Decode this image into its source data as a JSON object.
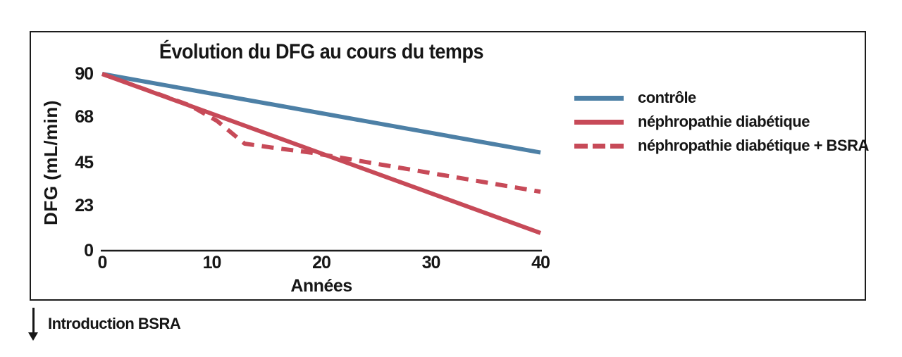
{
  "figure": {
    "title": "Évolution du DFG au cours du temps",
    "x_axis_label": "Années",
    "y_axis_label": "DFG (mL/min)",
    "annotation": {
      "arrow_icon": "down-arrow",
      "label": "Introduction BSRA"
    }
  },
  "legend": {
    "items": [
      {
        "label": "contrôle",
        "color": "#4d80a6",
        "style": "solid"
      },
      {
        "label": "néphropathie diabétique",
        "color": "#c74a58",
        "style": "solid"
      },
      {
        "label": "néphropathie diabétique + BSRA",
        "color": "#c74a58",
        "style": "dashed"
      }
    ]
  },
  "chart_data": {
    "type": "line",
    "title": "Évolution du DFG au cours du temps",
    "xlabel": "Années",
    "ylabel": "DFG (mL/min)",
    "xlim": [
      0,
      40
    ],
    "ylim": [
      0,
      90
    ],
    "xticks": [
      "0",
      "10",
      "20",
      "30",
      "40"
    ],
    "yticks": [
      "90",
      "68",
      "45",
      "23",
      "0"
    ],
    "grid": false,
    "legend_position": "right",
    "series": [
      {
        "name": "contrôle",
        "color": "#4d80a6",
        "style": "solid",
        "points": [
          [
            0,
            90
          ],
          [
            40,
            50
          ]
        ]
      },
      {
        "name": "néphropathie diabétique",
        "color": "#c74a58",
        "style": "solid",
        "points": [
          [
            0,
            90
          ],
          [
            40,
            9
          ]
        ]
      },
      {
        "name": "néphropathie diabétique + BSRA",
        "color": "#c74a58",
        "style": "dashed",
        "points": [
          [
            0,
            90
          ],
          [
            8,
            74
          ],
          [
            10.5,
            66
          ],
          [
            13,
            54.5
          ],
          [
            15.5,
            52.5
          ],
          [
            19,
            50
          ],
          [
            40,
            30
          ]
        ]
      }
    ],
    "annotation": "Introduction BSRA"
  },
  "colors": {
    "control_line": "#4d80a6",
    "nephropathy_line": "#c74a58",
    "axis": "#1c1c1c",
    "text": "#161616"
  }
}
